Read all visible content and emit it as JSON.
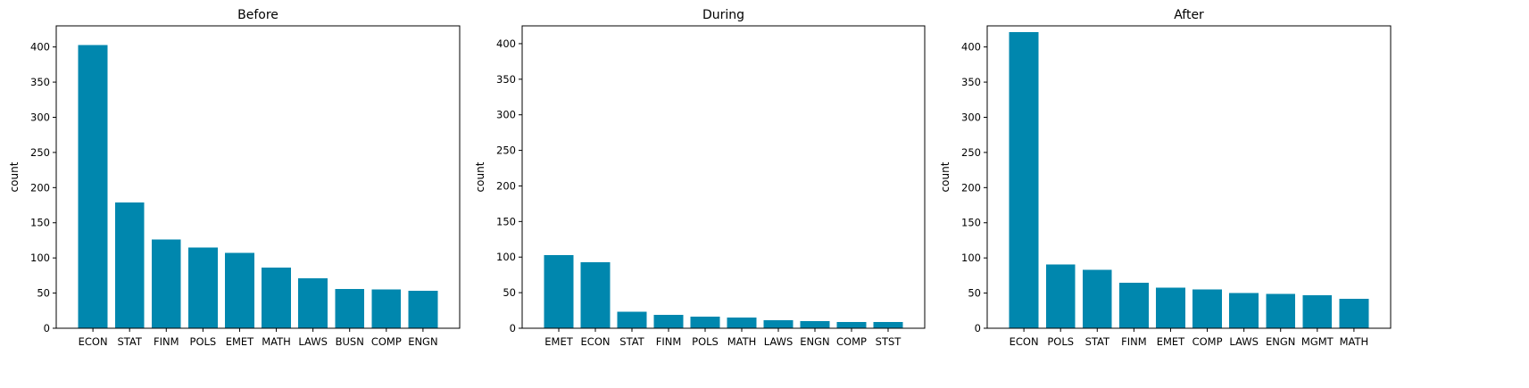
{
  "chart_data": [
    {
      "type": "bar",
      "title": "Before",
      "ylabel": "count",
      "xlabel": "",
      "ylim": [
        0,
        430
      ],
      "yticks": [
        0,
        50,
        100,
        150,
        200,
        250,
        300,
        350,
        400
      ],
      "grid": false,
      "categories": [
        "ECON",
        "STAT",
        "FINM",
        "POLS",
        "EMET",
        "MATH",
        "LAWS",
        "BUSN",
        "COMP",
        "ENGN"
      ],
      "values": [
        403,
        179,
        126,
        115,
        107,
        86,
        71,
        56,
        55,
        53
      ]
    },
    {
      "type": "bar",
      "title": "During",
      "ylabel": "count",
      "xlabel": "",
      "ylim": [
        0,
        425
      ],
      "yticks": [
        0,
        50,
        100,
        150,
        200,
        250,
        300,
        350,
        400
      ],
      "grid": false,
      "categories": [
        "EMET",
        "ECON",
        "STAT",
        "FINM",
        "POLS",
        "MATH",
        "LAWS",
        "ENGN",
        "COMP",
        "STST"
      ],
      "values": [
        103,
        93,
        23,
        19,
        16,
        15,
        11,
        10,
        9,
        9
      ]
    },
    {
      "type": "bar",
      "title": "After",
      "ylabel": "count",
      "xlabel": "",
      "ylim": [
        0,
        430
      ],
      "yticks": [
        0,
        50,
        100,
        150,
        200,
        250,
        300,
        350,
        400
      ],
      "grid": false,
      "categories": [
        "ECON",
        "POLS",
        "STAT",
        "FINM",
        "EMET",
        "COMP",
        "LAWS",
        "ENGN",
        "MGMT",
        "MATH"
      ],
      "values": [
        421,
        91,
        83,
        65,
        58,
        55,
        50,
        49,
        47,
        42
      ]
    }
  ],
  "colors": {
    "bar": "#0087ae",
    "axis": "#000000",
    "background": "#ffffff"
  }
}
